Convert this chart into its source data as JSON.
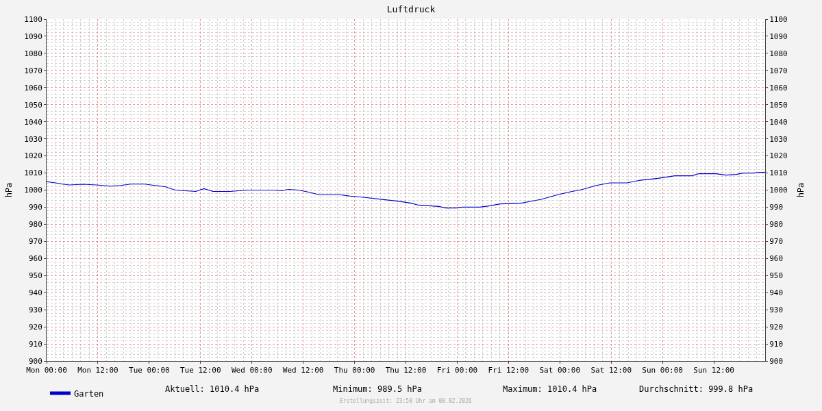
{
  "chart_data": {
    "type": "line",
    "title": "Luftdruck",
    "ylabel": "hPa",
    "y2label": "hPa",
    "x": [
      "2026-02-02T00:00",
      "2026-02-02T02:06",
      "2026-02-02T03:42",
      "2026-02-02T05:18",
      "2026-02-02T08:30",
      "2026-02-02T11:42",
      "2026-02-02T14:54",
      "2026-02-02T17:18",
      "2026-02-02T19:42",
      "2026-02-02T22:54",
      "2026-02-03T01:18",
      "2026-02-03T03:42",
      "2026-02-03T06:06",
      "2026-02-03T08:30",
      "2026-02-03T10:54",
      "2026-02-03T12:48",
      "2026-02-03T14:54",
      "2026-02-03T18:54",
      "2026-02-03T22:54",
      "2026-02-04T05:18",
      "2026-02-04T06:54",
      "2026-02-04T08:30",
      "2026-02-04T10:54",
      "2026-02-04T13:18",
      "2026-02-04T15:42",
      "2026-02-04T20:30",
      "2026-02-04T22:54",
      "2026-02-05T02:06",
      "2026-02-05T06:06",
      "2026-02-05T10:06",
      "2026-02-05T13:18",
      "2026-02-05T14:54",
      "2026-02-05T17:18",
      "2026-02-05T19:42",
      "2026-02-05T21:18",
      "2026-02-05T23:42",
      "2026-02-06T01:18",
      "2026-02-06T05:18",
      "2026-02-06T07:42",
      "2026-02-06T10:06",
      "2026-02-06T14:54",
      "2026-02-06T17:18",
      "2026-02-06T19:42",
      "2026-02-06T22:54",
      "2026-02-07T02:06",
      "2026-02-07T05:18",
      "2026-02-07T08:30",
      "2026-02-07T11:42",
      "2026-02-07T15:42",
      "2026-02-07T18:54",
      "2026-02-07T22:54",
      "2026-02-08T02:54",
      "2026-02-08T06:54",
      "2026-02-08T08:30",
      "2026-02-08T12:30",
      "2026-02-08T14:54",
      "2026-02-08T17:18",
      "2026-02-08T18:54",
      "2026-02-08T21:18",
      "2026-02-08T22:54",
      "2026-02-09T00:00"
    ],
    "series": [
      {
        "name": "Garten",
        "color": "#0000cc",
        "values": [
          1005,
          1004.2,
          1003.5,
          1003,
          1003.4,
          1003,
          1002.3,
          1002.7,
          1003.5,
          1003.5,
          1002.7,
          1002,
          1000,
          999.6,
          999.2,
          1000.8,
          999.2,
          999.2,
          1000,
          1000,
          999.6,
          1000.4,
          1000,
          998.8,
          997.3,
          997.3,
          996.5,
          995.8,
          994.6,
          993.5,
          992.3,
          991.2,
          990.8,
          990.4,
          989.5,
          989.5,
          990,
          990,
          990.8,
          991.9,
          992.3,
          993.5,
          994.6,
          996.9,
          998.8,
          1000.4,
          1002.7,
          1004.2,
          1004.2,
          1005.8,
          1006.9,
          1008.4,
          1008.4,
          1009.6,
          1009.6,
          1008.8,
          1009.2,
          1010,
          1010,
          1010.4,
          1010.4
        ]
      }
    ],
    "xlim": [
      "2026-02-02T00:00",
      "2026-02-09T00:00"
    ],
    "xticks": [
      {
        "value": "2026-02-02T00:00",
        "label": "Mon 00:00"
      },
      {
        "value": "2026-02-02T12:00",
        "label": "Mon 12:00"
      },
      {
        "value": "2026-02-03T00:00",
        "label": "Tue 00:00"
      },
      {
        "value": "2026-02-03T12:00",
        "label": "Tue 12:00"
      },
      {
        "value": "2026-02-04T00:00",
        "label": "Wed 00:00"
      },
      {
        "value": "2026-02-04T12:00",
        "label": "Wed 12:00"
      },
      {
        "value": "2026-02-05T00:00",
        "label": "Thu 00:00"
      },
      {
        "value": "2026-02-05T12:00",
        "label": "Thu 12:00"
      },
      {
        "value": "2026-02-06T00:00",
        "label": "Fri 00:00"
      },
      {
        "value": "2026-02-06T12:00",
        "label": "Fri 12:00"
      },
      {
        "value": "2026-02-07T00:00",
        "label": "Sat 00:00"
      },
      {
        "value": "2026-02-07T12:00",
        "label": "Sat 12:00"
      },
      {
        "value": "2026-02-08T00:00",
        "label": "Sun 00:00"
      },
      {
        "value": "2026-02-08T12:00",
        "label": "Sun 12:00"
      }
    ],
    "ylim": [
      900,
      1100
    ],
    "yticks": [
      900,
      910,
      920,
      930,
      940,
      950,
      960,
      970,
      980,
      990,
      1000,
      1010,
      1020,
      1030,
      1040,
      1050,
      1060,
      1070,
      1080,
      1090,
      1100
    ],
    "y2lim": [
      900,
      1100
    ],
    "y2ticks": [
      900,
      910,
      920,
      930,
      940,
      950,
      960,
      970,
      980,
      990,
      1000,
      1010,
      1020,
      1030,
      1040,
      1050,
      1060,
      1070,
      1080,
      1090,
      1100
    ],
    "grid": true,
    "legend": "bottom left",
    "line_style": "solid",
    "marker": "none",
    "annotations": [
      "Aktuell: 1010.4 hPa",
      "Minimum: 989.5 hPa",
      "Maximum: 1010.4 hPa",
      "Durchschnitt: 999.8 hPa",
      "Erstellungszeit: 23:58 Uhr am 08.02.2026"
    ]
  }
}
